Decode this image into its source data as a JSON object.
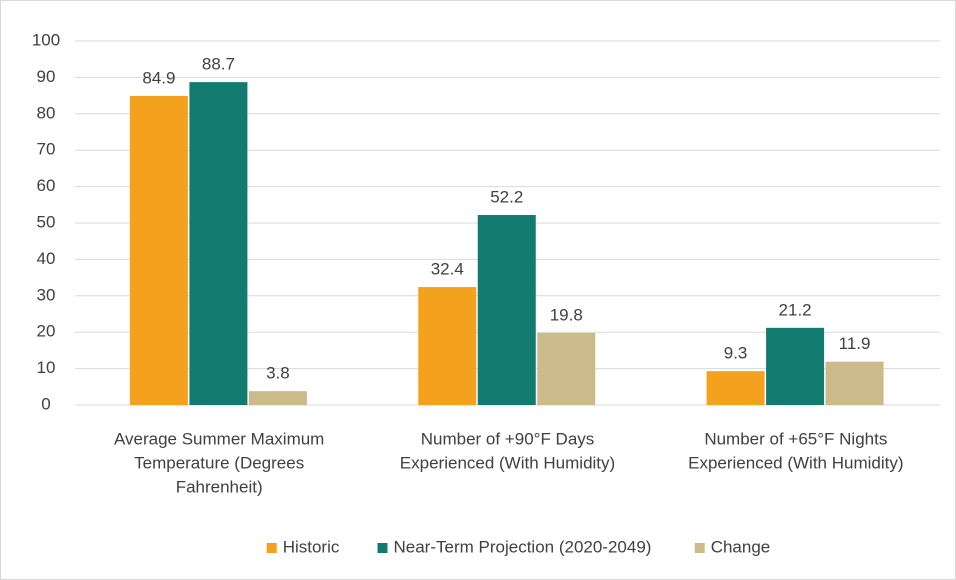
{
  "chart_data": {
    "type": "bar",
    "categories": [
      [
        "Average Summer Maximum",
        "Temperature (Degrees",
        "Fahrenheit)"
      ],
      [
        "Number of +90°F Days",
        "Experienced (With Humidity)"
      ],
      [
        "Number of +65°F Nights",
        "Experienced (With Humidity)"
      ]
    ],
    "series": [
      {
        "name": "Historic",
        "color": "#f4a21e",
        "values": [
          84.9,
          32.4,
          9.3
        ]
      },
      {
        "name": "Near-Term Projection (2020-2049)",
        "color": "#127a6e",
        "values": [
          88.7,
          52.2,
          21.2
        ]
      },
      {
        "name": "Change",
        "color": "#cbbb8a",
        "values": [
          3.8,
          19.8,
          11.9
        ]
      }
    ],
    "ylim": [
      0,
      100
    ],
    "yticks": [
      0,
      10,
      20,
      30,
      40,
      50,
      60,
      70,
      80,
      90,
      100
    ],
    "grid": true,
    "legend": "bottom"
  }
}
